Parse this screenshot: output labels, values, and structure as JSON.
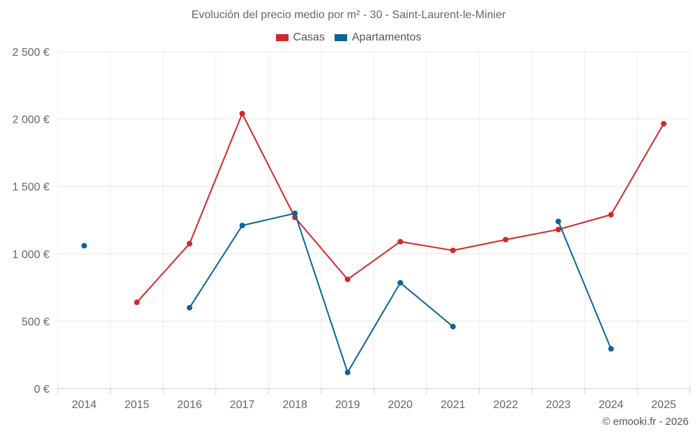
{
  "chart_data": {
    "type": "line",
    "title": "Evolución del precio medio por m² - 30 - Saint-Laurent-le-Minier",
    "categories": [
      "2014",
      "2015",
      "2016",
      "2017",
      "2018",
      "2019",
      "2020",
      "2021",
      "2022",
      "2023",
      "2024",
      "2025"
    ],
    "ylim": [
      0,
      2500
    ],
    "yticks": [
      0,
      500,
      1000,
      1500,
      2000,
      2500
    ],
    "ytick_labels": [
      "0 €",
      "500 €",
      "1 000 €",
      "1 500 €",
      "2 000 €",
      "2 500 €"
    ],
    "grid": true,
    "legend_position": "top-center",
    "series": [
      {
        "name": "Casas",
        "color": "#d62728",
        "values": [
          null,
          640,
          1075,
          2040,
          1270,
          810,
          1090,
          1025,
          1105,
          1180,
          1290,
          1965
        ]
      },
      {
        "name": "Apartamentos",
        "color": "#0b6398",
        "values": [
          1060,
          null,
          600,
          1210,
          1300,
          120,
          785,
          460,
          null,
          1240,
          295,
          null
        ]
      }
    ]
  },
  "footer": {
    "copyright": "© emooki.fr - 2026"
  }
}
